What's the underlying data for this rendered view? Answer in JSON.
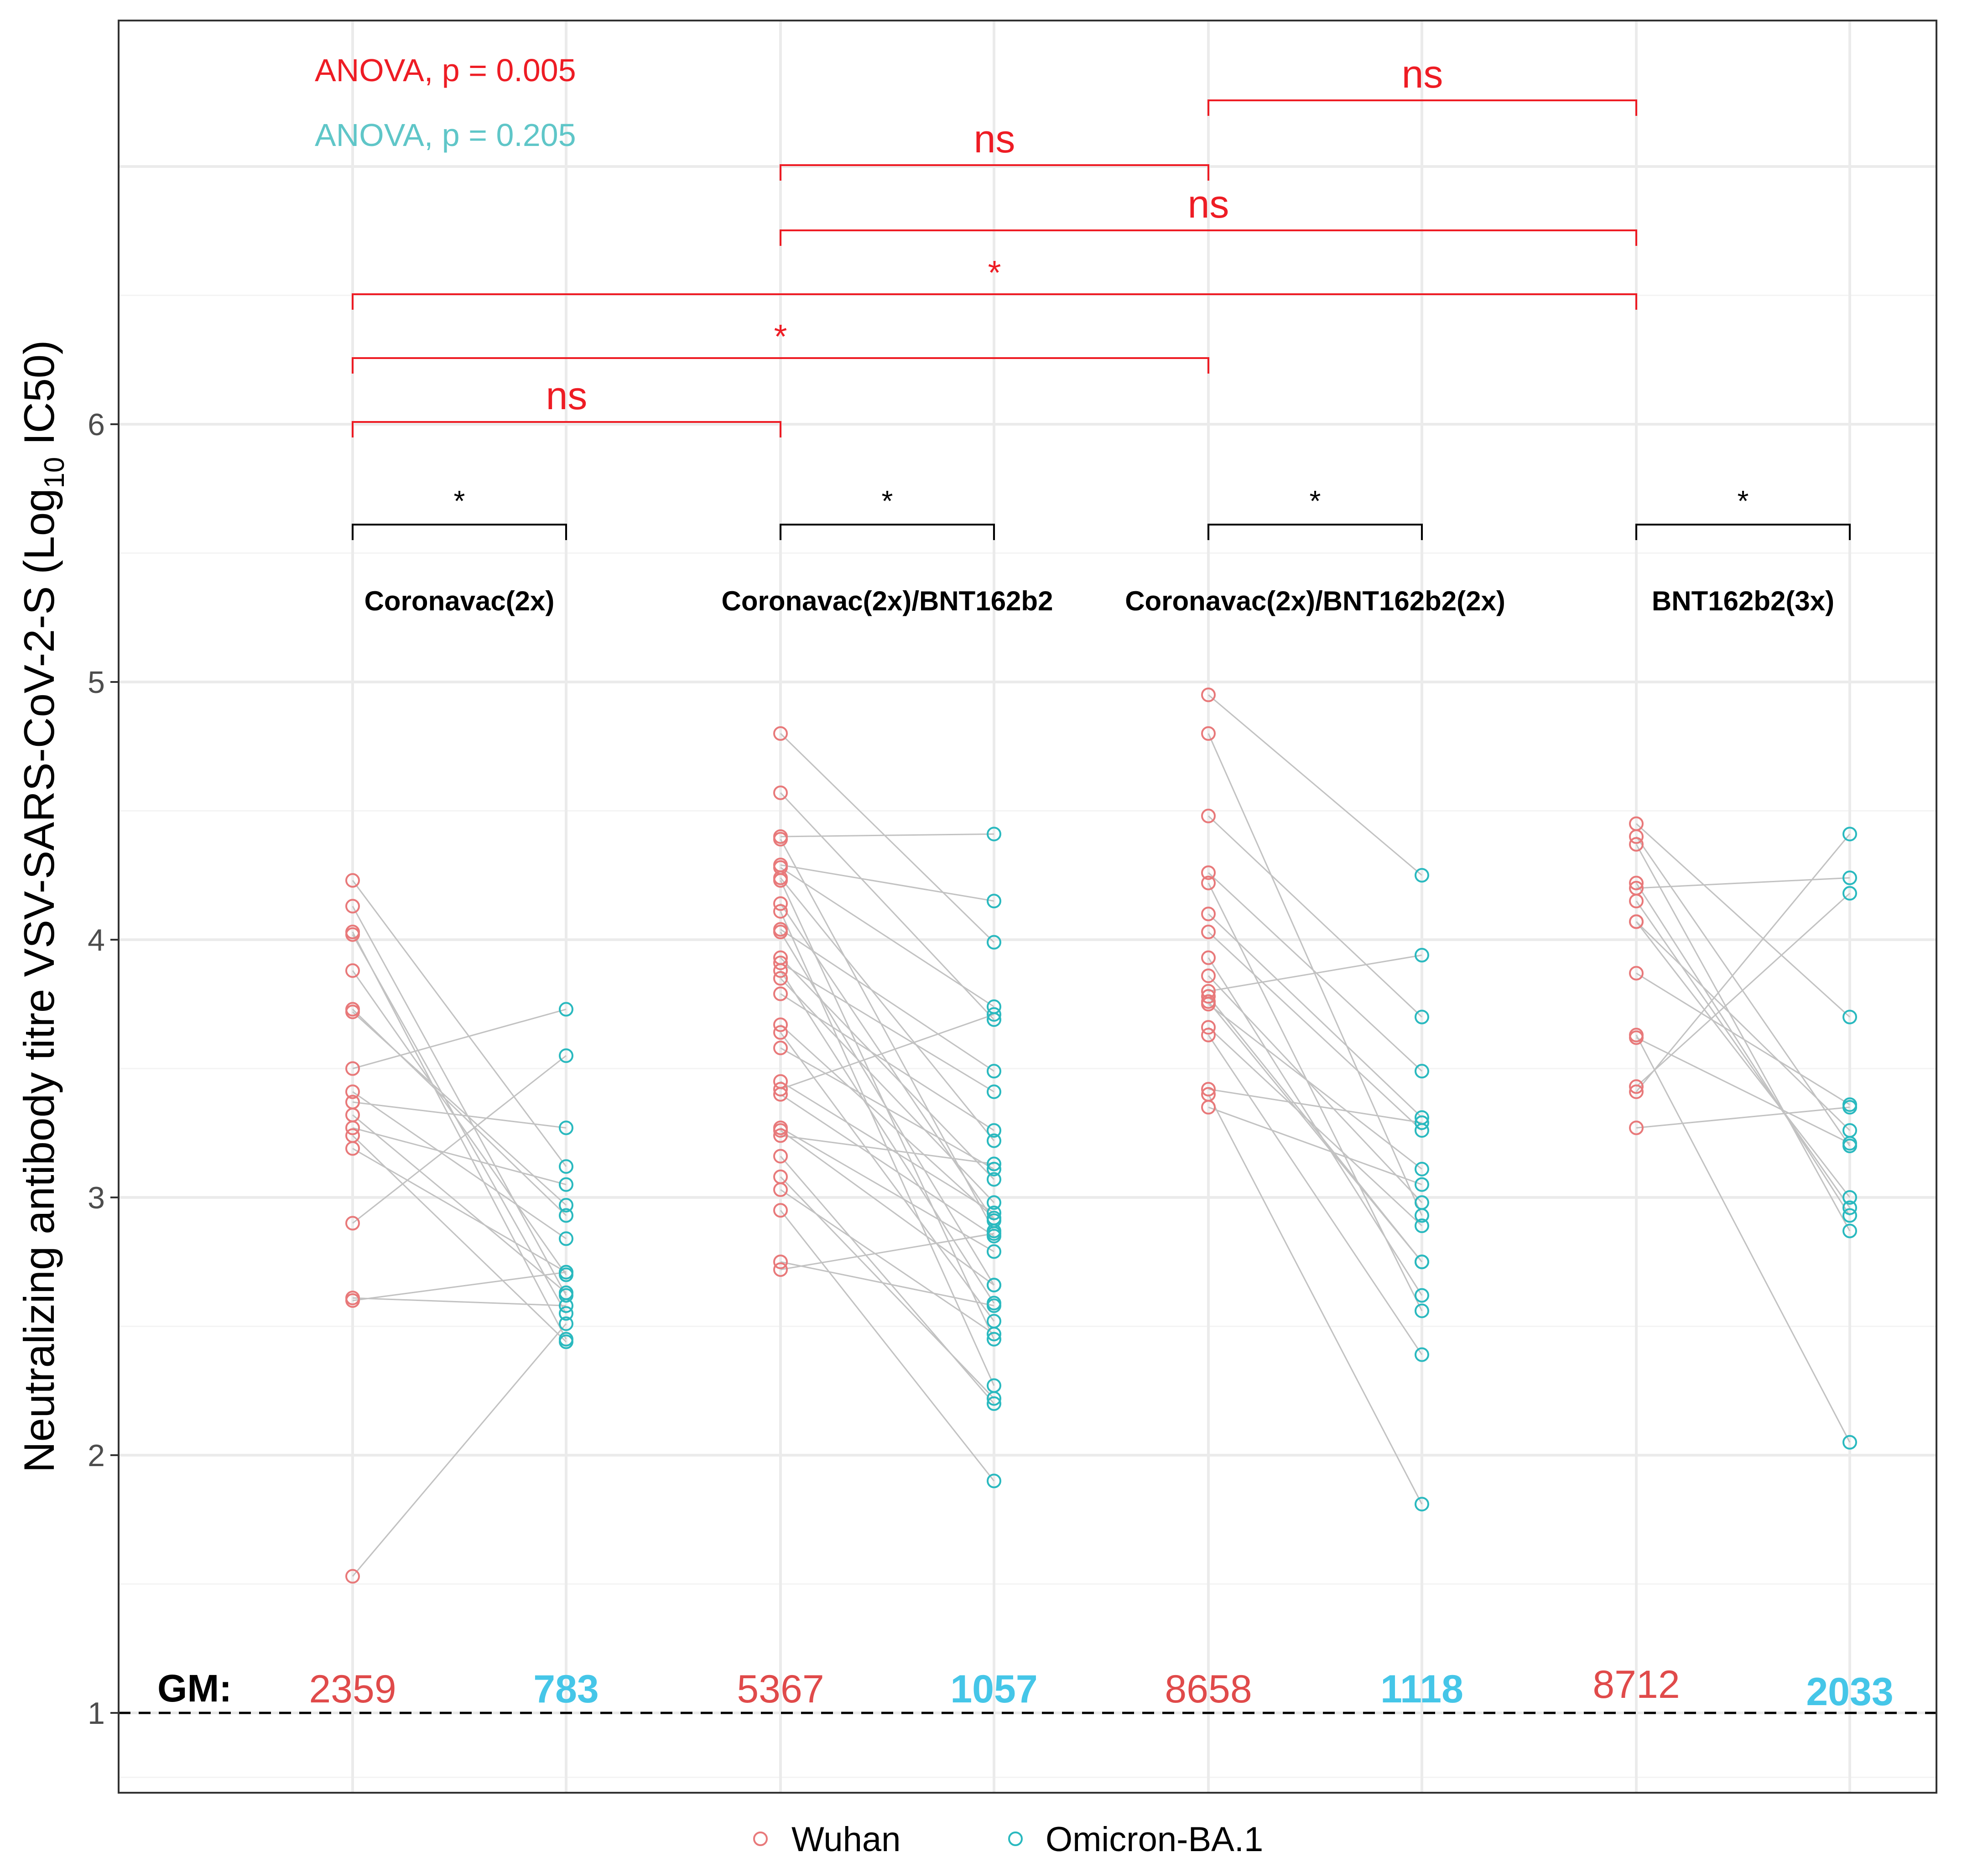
{
  "chart_data": {
    "type": "scatter",
    "subtype": "paired dot plot",
    "ylabel_main": "Neutralizing antibody titre VSV-SARS-CoV-2-S (Log",
    "ylabel_sub": "10",
    "ylabel_end": " IC50)",
    "ylim": [
      0.7,
      7.6
    ],
    "yticks": [
      "1",
      "2",
      "3",
      "4",
      "5",
      "6"
    ],
    "reference_line": 1,
    "colors": {
      "wuhan": "#e8797a",
      "omicron": "#2ab9bf",
      "sig": "#ee1c24",
      "black": "#000000",
      "anova2": "#5fc6c8",
      "gm_omicron": "#45c6e8",
      "gm_wuhan": "#e04a4a",
      "connector": "#c2c2c2"
    },
    "anova": [
      "ANOVA, p = 0.005",
      "ANOVA, p = 0.205"
    ],
    "groups": [
      {
        "name": "Coronavac(2x)",
        "wuhan_gm": "2359",
        "omicron_gm": "783",
        "pairs": [
          [
            4.23,
            3.12
          ],
          [
            4.13,
            2.62
          ],
          [
            4.03,
            2.45
          ],
          [
            4.02,
            2.55
          ],
          [
            3.88,
            2.7
          ],
          [
            3.73,
            2.93
          ],
          [
            3.72,
            2.97
          ],
          [
            3.5,
            3.73
          ],
          [
            3.41,
            2.84
          ],
          [
            3.37,
            3.27
          ],
          [
            3.32,
            2.63
          ],
          [
            3.27,
            3.05
          ],
          [
            3.24,
            2.44
          ],
          [
            3.19,
            2.71
          ],
          [
            2.9,
            3.55
          ],
          [
            2.61,
            2.58
          ],
          [
            2.6,
            2.71
          ],
          [
            1.53,
            2.51
          ]
        ]
      },
      {
        "name": "Coronavac(2x)/BNT162b2",
        "wuhan_gm": "5367",
        "omicron_gm": "1057",
        "pairs": [
          [
            4.8,
            3.99
          ],
          [
            4.57,
            3.69
          ],
          [
            4.4,
            4.41
          ],
          [
            4.39,
            2.87
          ],
          [
            4.29,
            4.15
          ],
          [
            4.28,
            3.74
          ],
          [
            4.24,
            3.22
          ],
          [
            4.23,
            2.45
          ],
          [
            4.14,
            2.91
          ],
          [
            4.11,
            2.27
          ],
          [
            4.04,
            3.49
          ],
          [
            4.03,
            2.66
          ],
          [
            3.93,
            3.07
          ],
          [
            3.91,
            3.41
          ],
          [
            3.88,
            2.59
          ],
          [
            3.85,
            2.98
          ],
          [
            3.79,
            3.26
          ],
          [
            3.67,
            2.92
          ],
          [
            3.64,
            2.52
          ],
          [
            3.58,
            3.11
          ],
          [
            3.45,
            2.94
          ],
          [
            3.42,
            3.71
          ],
          [
            3.4,
            2.85
          ],
          [
            3.27,
            2.79
          ],
          [
            3.26,
            2.66
          ],
          [
            3.24,
            3.13
          ],
          [
            3.16,
            2.2
          ],
          [
            3.08,
            2.22
          ],
          [
            3.03,
            2.47
          ],
          [
            2.95,
            1.9
          ],
          [
            2.75,
            2.58
          ],
          [
            2.72,
            2.86
          ]
        ]
      },
      {
        "name": "Coronavac(2x)/BNT162b2(2x)",
        "wuhan_gm": "8658",
        "omicron_gm": "1118",
        "pairs": [
          [
            4.95,
            4.25
          ],
          [
            4.8,
            2.93
          ],
          [
            4.48,
            3.7
          ],
          [
            4.26,
            3.49
          ],
          [
            4.22,
            2.56
          ],
          [
            4.1,
            3.31
          ],
          [
            4.03,
            3.26
          ],
          [
            3.93,
            2.62
          ],
          [
            3.86,
            2.98
          ],
          [
            3.8,
            3.94
          ],
          [
            3.78,
            2.75
          ],
          [
            3.76,
            2.75
          ],
          [
            3.75,
            3.11
          ],
          [
            3.66,
            2.89
          ],
          [
            3.63,
            2.39
          ],
          [
            3.42,
            3.29
          ],
          [
            3.4,
            1.81
          ],
          [
            3.35,
            3.05
          ]
        ]
      },
      {
        "name": "BNT162b2(3x)",
        "wuhan_gm": "8712",
        "omicron_gm": "2033",
        "pairs": [
          [
            4.45,
            3.7
          ],
          [
            4.4,
            3.2
          ],
          [
            4.37,
            2.87
          ],
          [
            4.22,
            2.93
          ],
          [
            4.2,
            4.24
          ],
          [
            4.15,
            2.96
          ],
          [
            4.07,
            3.26
          ],
          [
            4.07,
            3.0
          ],
          [
            3.87,
            3.36
          ],
          [
            3.63,
            2.05
          ],
          [
            3.62,
            3.21
          ],
          [
            3.43,
            4.18
          ],
          [
            3.41,
            4.41
          ],
          [
            3.27,
            3.35
          ]
        ]
      }
    ],
    "within_sig": [
      "*",
      "*",
      "*",
      "*"
    ],
    "between_sig": [
      {
        "from": 0,
        "to": 1,
        "label": "ns"
      },
      {
        "from": 0,
        "to": 2,
        "label": "*"
      },
      {
        "from": 0,
        "to": 3,
        "label": "*"
      },
      {
        "from": 1,
        "to": 3,
        "label": "ns"
      },
      {
        "from": 1,
        "to": 2,
        "label": "ns"
      },
      {
        "from": 2,
        "to": 3,
        "label": "ns"
      }
    ],
    "gm_label": "GM:",
    "legend": [
      "Wuhan",
      "Omicron-BA.1"
    ]
  }
}
